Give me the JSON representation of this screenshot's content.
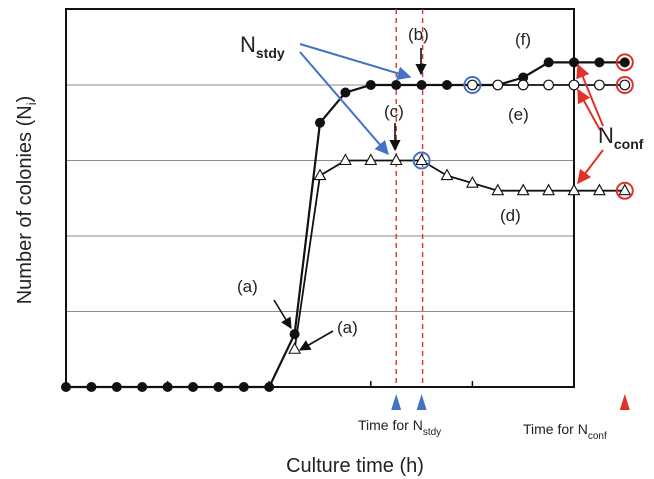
{
  "chart_data": {
    "type": "line",
    "xlabel": "Culture time (h)",
    "ylabel_main": "Number of colonies (N",
    "ylabel_sub": "i",
    "ylabel_close": ")",
    "grid": true,
    "series": [
      {
        "id": "filled",
        "marker": "filled-circle",
        "points": [
          [
            0,
            0
          ],
          [
            1,
            0
          ],
          [
            2,
            0
          ],
          [
            3,
            0
          ],
          [
            4,
            0
          ],
          [
            5,
            0
          ],
          [
            6,
            0
          ],
          [
            7,
            0
          ],
          [
            8,
            0
          ],
          [
            9,
            0.7
          ],
          [
            10,
            3.5
          ],
          [
            11,
            3.9
          ],
          [
            12,
            4.0
          ],
          [
            13,
            4.0
          ],
          [
            14,
            4.0
          ],
          [
            15,
            4.0
          ],
          [
            16,
            4.0
          ],
          [
            17,
            4.0
          ],
          [
            18,
            4.1
          ],
          [
            19,
            4.3
          ],
          [
            20,
            4.3
          ],
          [
            21,
            4.3
          ],
          [
            22,
            4.3
          ]
        ]
      },
      {
        "id": "open-circle",
        "marker": "open-circle",
        "points": [
          [
            16,
            4.0
          ],
          [
            17,
            4.0
          ],
          [
            18,
            4.0
          ],
          [
            19,
            4.0
          ],
          [
            20,
            4.0
          ],
          [
            21,
            4.0
          ],
          [
            22,
            4.0
          ]
        ]
      },
      {
        "id": "triangle",
        "marker": "open-triangle",
        "points": [
          [
            9,
            0.5
          ],
          [
            10,
            2.8
          ],
          [
            11,
            3.0
          ],
          [
            12,
            3.0
          ],
          [
            13,
            3.0
          ],
          [
            14,
            3.0
          ],
          [
            15,
            2.8
          ],
          [
            16,
            2.7
          ],
          [
            17,
            2.6
          ],
          [
            18,
            2.6
          ],
          [
            19,
            2.6
          ],
          [
            20,
            2.6
          ],
          [
            21,
            2.6
          ],
          [
            22,
            2.6
          ]
        ]
      }
    ],
    "blue_highlights": [
      [
        16,
        4.0
      ],
      [
        14,
        3.0
      ]
    ],
    "red_highlights": [
      [
        22,
        4.3
      ],
      [
        22,
        4.0
      ],
      [
        22,
        2.6
      ]
    ],
    "vlines": [
      13,
      14
    ],
    "time_stdy_markers": [
      13,
      14
    ],
    "time_conf_marker": 22,
    "annotations": {
      "a": "(a)",
      "b": "(b)",
      "c": "(c)",
      "d": "(d)",
      "e": "(e)",
      "f": "(f)",
      "n_stdy_main": "N",
      "n_stdy_sub": "stdy",
      "n_conf_main": "N",
      "n_conf_sub": "conf",
      "time_stdy_prefix": "Time for N",
      "time_stdy_sub": "stdy",
      "time_conf_prefix": "Time for N",
      "time_conf_sub": "conf"
    },
    "colors": {
      "blue": "#4472c4",
      "red": "#e0312b",
      "black": "#111111",
      "grid": "#8c8c8c"
    }
  }
}
